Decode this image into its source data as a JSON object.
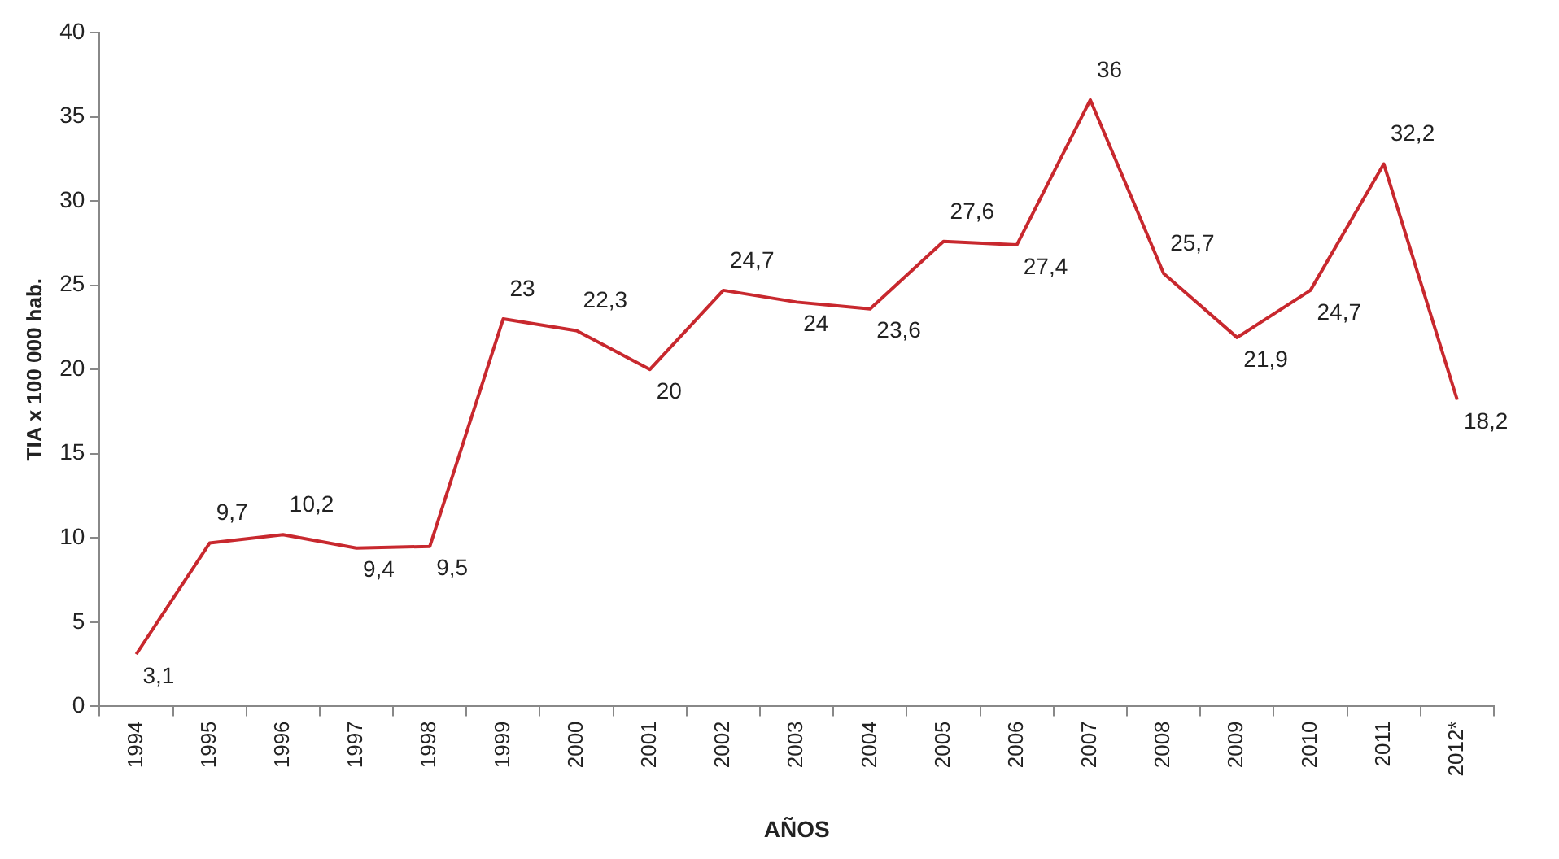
{
  "chart_data": {
    "type": "line",
    "xlabel": "AÑOS",
    "ylabel": "TIA x 100 000 hab.",
    "categories": [
      "1994",
      "1995",
      "1996",
      "1997",
      "1998",
      "1999",
      "2000",
      "2001",
      "2002",
      "2003",
      "2004",
      "2005",
      "2006",
      "2007",
      "2008",
      "2009",
      "2010",
      "2011",
      "2012*"
    ],
    "series": [
      {
        "color": "#c8282e",
        "values": [
          3.1,
          9.7,
          10.2,
          9.4,
          9.5,
          23,
          22.3,
          20,
          24.7,
          24,
          23.6,
          27.6,
          27.4,
          36,
          25.7,
          21.9,
          24.7,
          32.2,
          18.2
        ],
        "value_labels": [
          "3,1",
          "9,7",
          "10,2",
          "9,4",
          "9,5",
          "23",
          "22,3",
          "20",
          "24,7",
          "24",
          "23,6",
          "27,6",
          "27,4",
          "36",
          "25,7",
          "21,9",
          "24,7",
          "32,2",
          "18,2"
        ]
      }
    ],
    "ylim": [
      0,
      40
    ],
    "yticks": [
      0,
      5,
      10,
      15,
      20,
      25,
      30,
      35,
      40
    ],
    "grid": false,
    "legend": false,
    "marker": "none",
    "line_style": "solid"
  }
}
